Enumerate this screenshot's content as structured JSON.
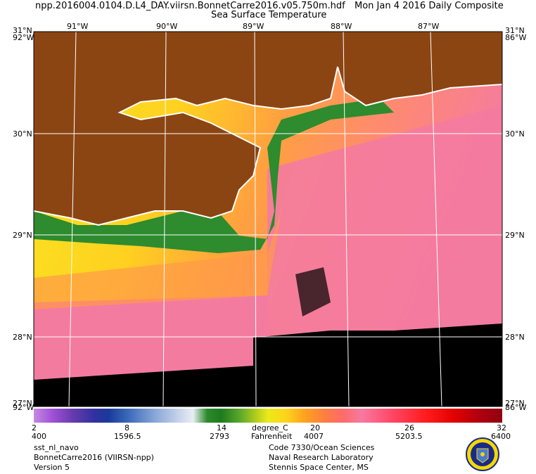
{
  "header": {
    "file_name": "npp.2016004.0104.D.L4_DAY.viirsn.BonnetCarre2016.v05.750m.hdf",
    "date_label": "Mon Jan  4 2016 Daily Composite",
    "parameter": "Sea Surface Temperature"
  },
  "map": {
    "longitude_labels": [
      "91°W",
      "90°W",
      "89°W",
      "88°W",
      "87°W"
    ],
    "latitude_labels": [
      "30°N",
      "29°N",
      "28°N"
    ],
    "corner_top_left": "31°N",
    "corner_top_left_lon": "92°W",
    "corner_top_right": "31°N",
    "corner_top_right_lon": "86°W",
    "corner_bottom_left": "27°N",
    "corner_bottom_left_lon": "92°W",
    "corner_bottom_right": "27°N",
    "corner_bottom_right_lon": "86°W",
    "colors": {
      "land": "#8b4513",
      "cold_nearshore": "#2e8b2e",
      "mid": "#f0e020",
      "warm": "#ff9a3c",
      "warmest": "#f47ba0",
      "no_data": "#000000",
      "graticule": "#ffffff"
    }
  },
  "colorbar": {
    "units_c": "degree_C",
    "units_f": "Fahrenheit",
    "celsius_ticks": [
      "2",
      "8",
      "14",
      "20",
      "26",
      "32"
    ],
    "fahrenheit_ticks": [
      "400",
      "1596.5",
      "2793",
      "4007",
      "5203.5",
      "6400"
    ]
  },
  "footer": {
    "left": [
      "sst_nl_navo",
      "BonnetCarre2016 (VIIRSN-npp)",
      "Version 5"
    ],
    "right": [
      "Code 7330/Ocean Sciences",
      "Naval Research Laboratory",
      "Stennis Space Center, MS"
    ]
  },
  "logo": {
    "icon": "nrl-seal-icon"
  }
}
